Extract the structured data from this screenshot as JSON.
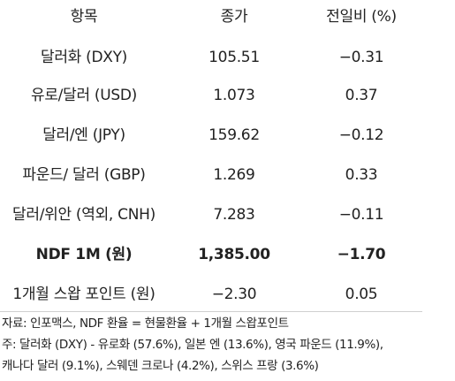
{
  "table": {
    "headers": {
      "item": "항목",
      "close": "종가",
      "change": "전일비 (%)"
    },
    "rows": [
      {
        "item": "달러화 (DXY)",
        "close": "105.51",
        "change": "−0.31"
      },
      {
        "item": "유로/달러 (USD)",
        "close": "1.073",
        "change": "0.37"
      },
      {
        "item": "달러/엔 (JPY)",
        "close": "159.62",
        "change": "−0.12"
      },
      {
        "item": "파운드/ 달러 (GBP)",
        "close": "1.269",
        "change": "0.33"
      },
      {
        "item": "달러/위안 (역외, CNH)",
        "close": "7.283",
        "change": "−0.11"
      },
      {
        "item": "NDF 1M (원)",
        "close": "1,385.00",
        "change": "−1.70"
      },
      {
        "item": "1개월 스왑 포인트 (원)",
        "close": "−2.30",
        "change": "0.05"
      }
    ]
  },
  "notes": {
    "source": "자료: 인포맥스, NDF 환율 = 현물환율 + 1개월 스왑포인트",
    "note_line1": "주: 달러화 (DXY) - 유로화 (57.6%), 일본 엔 (13.6%), 영국 파운드 (11.9%),",
    "note_line2": "캐나다 달러 (9.1%), 스웨덴 크로나 (4.2%), 스위스 프랑 (3.6%)"
  }
}
